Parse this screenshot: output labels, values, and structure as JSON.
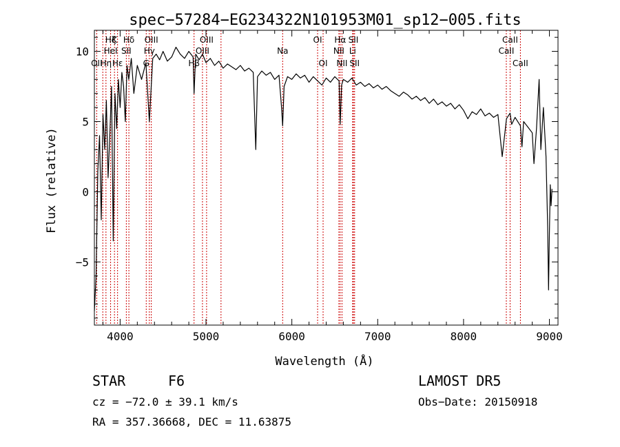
{
  "chart_data": {
    "type": "line",
    "title": "spec−57284−EG234322N101953M01_sp12−005.fits",
    "xlabel": "Wavelength (Å)",
    "ylabel": "Flux (relative)",
    "xlim": [
      3700,
      9100
    ],
    "ylim": [
      -9.5,
      11.5
    ],
    "xticks": [
      4000,
      5000,
      6000,
      7000,
      8000,
      9000
    ],
    "yticks": [
      -5,
      0,
      5,
      10
    ],
    "ytick_labels": [
      "−5",
      "0",
      "5",
      "10"
    ],
    "grid": false,
    "series": [
      {
        "color": "#000000",
        "x": [
          3700,
          3720,
          3740,
          3760,
          3780,
          3800,
          3820,
          3840,
          3860,
          3880,
          3900,
          3920,
          3940,
          3960,
          3980,
          4000,
          4020,
          4040,
          4060,
          4080,
          4100,
          4130,
          4160,
          4200,
          4250,
          4300,
          4340,
          4380,
          4420,
          4460,
          4500,
          4550,
          4600,
          4650,
          4700,
          4750,
          4800,
          4850,
          4861,
          4880,
          4920,
          4960,
          5000,
          5050,
          5100,
          5150,
          5200,
          5250,
          5300,
          5350,
          5400,
          5450,
          5500,
          5550,
          5580,
          5600,
          5650,
          5700,
          5750,
          5800,
          5850,
          5880,
          5893,
          5910,
          5950,
          6000,
          6050,
          6100,
          6150,
          6200,
          6250,
          6300,
          6350,
          6400,
          6450,
          6500,
          6550,
          6563,
          6580,
          6600,
          6650,
          6700,
          6750,
          6800,
          6850,
          6900,
          6950,
          7000,
          7050,
          7100,
          7150,
          7200,
          7250,
          7300,
          7350,
          7400,
          7450,
          7500,
          7550,
          7600,
          7650,
          7700,
          7750,
          7800,
          7850,
          7900,
          7950,
          8000,
          8050,
          8100,
          8150,
          8200,
          8250,
          8300,
          8350,
          8400,
          8450,
          8500,
          8542,
          8560,
          8600,
          8662,
          8680,
          8700,
          8750,
          8800,
          8820,
          8850,
          8880,
          8900,
          8930,
          8960,
          8980,
          8990,
          9000,
          9010,
          9020,
          9030
        ],
        "y": [
          -8.5,
          -6.0,
          1.5,
          4.0,
          -2.0,
          5.5,
          3.0,
          6.5,
          1.0,
          4.0,
          7.5,
          -3.5,
          7.0,
          4.5,
          8.0,
          6.0,
          8.5,
          7.5,
          5.0,
          9.0,
          8.0,
          9.5,
          7.0,
          9.0,
          8.0,
          9.2,
          5.0,
          9.5,
          9.8,
          9.4,
          10.0,
          9.3,
          9.6,
          10.3,
          9.8,
          9.5,
          10.0,
          9.6,
          7.0,
          9.8,
          9.4,
          9.8,
          9.2,
          9.5,
          9.0,
          9.3,
          8.8,
          9.1,
          8.9,
          8.7,
          9.0,
          8.6,
          8.8,
          8.5,
          3.0,
          8.2,
          8.6,
          8.3,
          8.5,
          8.0,
          8.3,
          6.0,
          4.7,
          7.5,
          8.2,
          8.0,
          8.4,
          8.1,
          8.3,
          7.8,
          8.2,
          7.9,
          7.6,
          8.1,
          7.8,
          8.2,
          7.9,
          4.8,
          7.6,
          8.0,
          7.8,
          8.1,
          7.6,
          7.8,
          7.5,
          7.7,
          7.4,
          7.6,
          7.3,
          7.5,
          7.2,
          7.0,
          6.8,
          7.1,
          6.9,
          6.6,
          6.8,
          6.5,
          6.7,
          6.3,
          6.6,
          6.2,
          6.4,
          6.1,
          6.3,
          5.9,
          6.2,
          5.8,
          5.2,
          5.7,
          5.5,
          5.9,
          5.4,
          5.6,
          5.3,
          5.5,
          2.5,
          5.2,
          5.6,
          4.8,
          5.3,
          4.7,
          3.2,
          5.0,
          4.6,
          4.2,
          2.0,
          4.5,
          8.0,
          3.0,
          6.0,
          2.5,
          -2.5,
          -7.0,
          -3.0,
          0.5,
          -1.0,
          0.2
        ]
      }
    ],
    "lines": [
      {
        "x": 3727,
        "labels": [
          "OII"
        ],
        "rows": [
          2
        ]
      },
      {
        "x": 3798,
        "labels": [],
        "rows": []
      },
      {
        "x": 3835,
        "labels": [
          "Hη"
        ],
        "rows": [
          2
        ]
      },
      {
        "x": 3889,
        "labels": [
          "Hζ",
          "HeI"
        ],
        "rows": [
          0,
          1
        ]
      },
      {
        "x": 3934,
        "labels": [
          "K"
        ],
        "rows": [
          0
        ]
      },
      {
        "x": 3970,
        "labels": [
          "Hε"
        ],
        "rows": [
          2
        ]
      },
      {
        "x": 4072,
        "labels": [
          "SII"
        ],
        "rows": [
          1
        ]
      },
      {
        "x": 4102,
        "labels": [
          "Hδ"
        ],
        "rows": [
          0
        ]
      },
      {
        "x": 4304,
        "labels": [
          "G"
        ],
        "rows": [
          2
        ]
      },
      {
        "x": 4340,
        "labels": [
          "Hγ"
        ],
        "rows": [
          1
        ]
      },
      {
        "x": 4363,
        "labels": [
          "OIII"
        ],
        "rows": [
          0
        ]
      },
      {
        "x": 4861,
        "labels": [
          "Hβ"
        ],
        "rows": [
          2
        ]
      },
      {
        "x": 4959,
        "labels": [
          "OIII"
        ],
        "rows": [
          1
        ]
      },
      {
        "x": 5007,
        "labels": [
          "OIII"
        ],
        "rows": [
          0
        ]
      },
      {
        "x": 5175,
        "labels": [],
        "rows": []
      },
      {
        "x": 5893,
        "labels": [
          "Na"
        ],
        "rows": [
          1
        ]
      },
      {
        "x": 6300,
        "labels": [
          "OI"
        ],
        "rows": [
          0
        ]
      },
      {
        "x": 6364,
        "labels": [
          "OI"
        ],
        "rows": [
          2
        ]
      },
      {
        "x": 6548,
        "labels": [
          "NII"
        ],
        "rows": [
          1
        ]
      },
      {
        "x": 6563,
        "labels": [
          "Hα"
        ],
        "rows": [
          0
        ]
      },
      {
        "x": 6584,
        "labels": [
          "NII"
        ],
        "rows": [
          2
        ]
      },
      {
        "x": 6708,
        "labels": [
          "Li"
        ],
        "rows": [
          1
        ]
      },
      {
        "x": 6717,
        "labels": [
          "SII"
        ],
        "rows": [
          0
        ]
      },
      {
        "x": 6731,
        "labels": [
          "SII"
        ],
        "rows": [
          2
        ]
      },
      {
        "x": 8498,
        "labels": [
          "CaII"
        ],
        "rows": [
          1
        ]
      },
      {
        "x": 8542,
        "labels": [
          "CaII"
        ],
        "rows": [
          0
        ]
      },
      {
        "x": 8662,
        "labels": [
          "CaII"
        ],
        "rows": [
          2
        ]
      }
    ],
    "line_color": "#cc0000"
  },
  "info": {
    "object_class": "STAR",
    "subclass": "F6",
    "survey": "LAMOST  DR5",
    "redshift": "cz = −72.0 ± 39.1 km/s",
    "obs_date": "Obs−Date: 20150918",
    "coords": "RA = 357.36668, DEC =  11.63875"
  }
}
